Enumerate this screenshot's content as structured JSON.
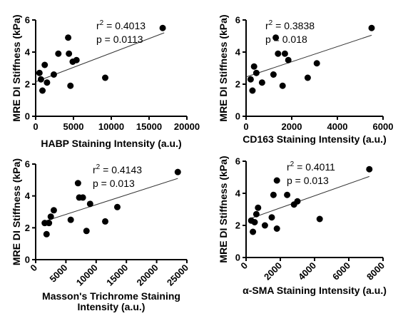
{
  "figure": {
    "chart_data": [
      {
        "type": "scatter",
        "title": "",
        "xlabel": "HABP Staining Intensity (a.u.)",
        "ylabel": "MRE DI Stiffness (kPa)",
        "xlim": [
          0,
          20000
        ],
        "ylim": [
          0,
          6
        ],
        "xticks": [
          0,
          5000,
          10000,
          15000,
          20000
        ],
        "yticks": [
          0,
          2,
          4,
          6
        ],
        "xtick_rotation": 0,
        "stats": {
          "r2_label": "r",
          "r2_sup": "2",
          "r2_value": " = 0.4013",
          "p_text": "p = 0.0113"
        },
        "trendline": {
          "x": [
            0,
            17000
          ],
          "y": [
            2.15,
            5.2
          ]
        },
        "points": [
          {
            "x": 500,
            "y": 2.7
          },
          {
            "x": 700,
            "y": 2.3
          },
          {
            "x": 900,
            "y": 1.6
          },
          {
            "x": 1200,
            "y": 3.2
          },
          {
            "x": 1500,
            "y": 2.1
          },
          {
            "x": 2400,
            "y": 2.6
          },
          {
            "x": 3000,
            "y": 3.9
          },
          {
            "x": 4300,
            "y": 4.9
          },
          {
            "x": 4400,
            "y": 3.9
          },
          {
            "x": 4600,
            "y": 1.9
          },
          {
            "x": 4900,
            "y": 3.4
          },
          {
            "x": 5400,
            "y": 3.5
          },
          {
            "x": 9200,
            "y": 2.4
          },
          {
            "x": 16800,
            "y": 5.5
          }
        ]
      },
      {
        "type": "scatter",
        "title": "",
        "xlabel": "CD163 Staining Intensity (a.u.)",
        "ylabel": "MRE DI Stiffness (kPa)",
        "xlim": [
          0,
          6000
        ],
        "ylim": [
          0,
          6
        ],
        "xticks": [
          0,
          2000,
          4000,
          6000
        ],
        "yticks": [
          0,
          2,
          4,
          6
        ],
        "xtick_rotation": 0,
        "stats": {
          "r2_label": "r",
          "r2_sup": "2",
          "r2_value": " = 0.3838",
          "p_text": "p = 0.018"
        },
        "trendline": {
          "x": [
            0,
            5500
          ],
          "y": [
            2.45,
            5.05
          ]
        },
        "points": [
          {
            "x": 200,
            "y": 2.3
          },
          {
            "x": 280,
            "y": 1.6
          },
          {
            "x": 350,
            "y": 3.1
          },
          {
            "x": 450,
            "y": 2.7
          },
          {
            "x": 700,
            "y": 2.1
          },
          {
            "x": 1200,
            "y": 2.6
          },
          {
            "x": 1300,
            "y": 4.9
          },
          {
            "x": 1400,
            "y": 3.9
          },
          {
            "x": 1600,
            "y": 1.9
          },
          {
            "x": 1700,
            "y": 3.9
          },
          {
            "x": 1850,
            "y": 3.5
          },
          {
            "x": 2700,
            "y": 2.4
          },
          {
            "x": 3100,
            "y": 3.3
          },
          {
            "x": 5500,
            "y": 5.5
          }
        ]
      },
      {
        "type": "scatter",
        "title": "",
        "xlabel": "Masson's Trichrome Staining Intensity (a.u.)",
        "xlabel_lines": [
          "Masson's Trichrome Staining",
          "Intensity (a.u.)"
        ],
        "ylabel": "MRE DI Stiffness (kPa)",
        "xlim": [
          0,
          25000
        ],
        "ylim": [
          0,
          6
        ],
        "xticks": [
          0,
          5000,
          10000,
          15000,
          20000,
          25000
        ],
        "yticks": [
          0,
          2,
          4,
          6
        ],
        "xtick_rotation": -45,
        "stats": {
          "r2_label": "r",
          "r2_sup": "2",
          "r2_value": " = 0.4143",
          "p_text": "p = 0.013"
        },
        "trendline": {
          "x": [
            1000,
            23500
          ],
          "y": [
            2.35,
            5.1
          ]
        },
        "points": [
          {
            "x": 1500,
            "y": 2.3
          },
          {
            "x": 1800,
            "y": 1.6
          },
          {
            "x": 2200,
            "y": 2.3
          },
          {
            "x": 2500,
            "y": 2.7
          },
          {
            "x": 3000,
            "y": 3.1
          },
          {
            "x": 5800,
            "y": 2.5
          },
          {
            "x": 7000,
            "y": 4.8
          },
          {
            "x": 7200,
            "y": 3.9
          },
          {
            "x": 7800,
            "y": 3.9
          },
          {
            "x": 8400,
            "y": 1.8
          },
          {
            "x": 9000,
            "y": 3.5
          },
          {
            "x": 11500,
            "y": 2.4
          },
          {
            "x": 13500,
            "y": 3.3
          },
          {
            "x": 23500,
            "y": 5.5
          }
        ]
      },
      {
        "type": "scatter",
        "title": "",
        "xlabel": "α-SMA Staining Intensity (a.u.)",
        "ylabel": "MRE DI Stiffness (kPa)",
        "xlim": [
          0,
          8000
        ],
        "ylim": [
          0,
          6
        ],
        "xticks": [
          0,
          2000,
          4000,
          6000,
          8000
        ],
        "yticks": [
          0,
          2,
          4,
          6
        ],
        "xtick_rotation": -45,
        "stats": {
          "r2_label": "r",
          "r2_sup": "2",
          "r2_value": " = 0.4011",
          "p_text": "p = 0.013"
        },
        "trendline": {
          "x": [
            300,
            7200
          ],
          "y": [
            2.45,
            5.05
          ]
        },
        "points": [
          {
            "x": 300,
            "y": 2.3
          },
          {
            "x": 400,
            "y": 1.6
          },
          {
            "x": 500,
            "y": 2.2
          },
          {
            "x": 600,
            "y": 2.7
          },
          {
            "x": 700,
            "y": 3.1
          },
          {
            "x": 1100,
            "y": 2.0
          },
          {
            "x": 1500,
            "y": 2.5
          },
          {
            "x": 1600,
            "y": 3.9
          },
          {
            "x": 1800,
            "y": 4.8
          },
          {
            "x": 1800,
            "y": 1.8
          },
          {
            "x": 2400,
            "y": 3.9
          },
          {
            "x": 2800,
            "y": 3.3
          },
          {
            "x": 3000,
            "y": 3.5
          },
          {
            "x": 4300,
            "y": 2.4
          },
          {
            "x": 7200,
            "y": 5.5
          }
        ]
      }
    ]
  }
}
